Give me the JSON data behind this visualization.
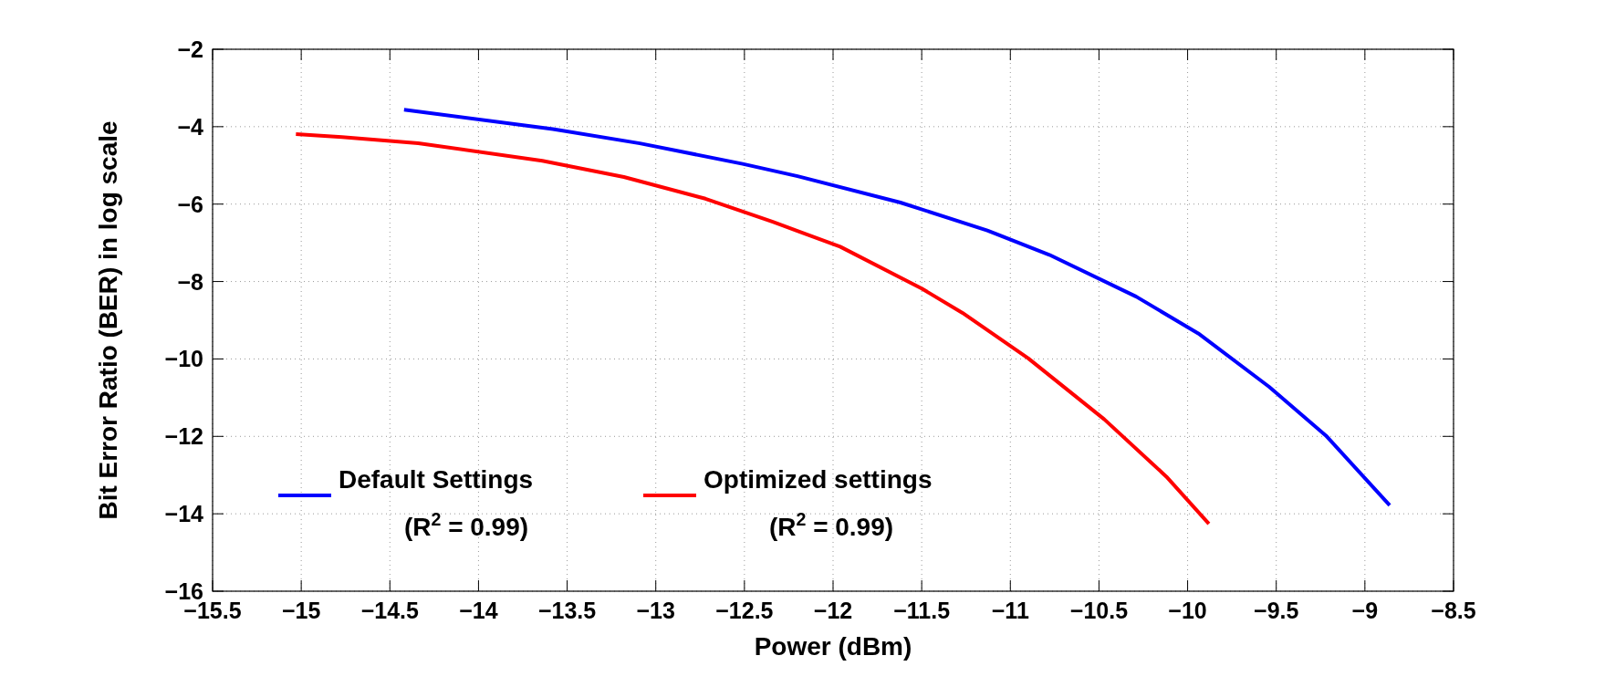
{
  "chart_data": {
    "type": "line",
    "xlabel": "Power (dBm)",
    "ylabel": "Bit Error Ratio (BER) in log scale",
    "xlim": [
      -15.5,
      -8.5
    ],
    "xticks": [
      -15.5,
      -15,
      -14.5,
      -14,
      -13.5,
      -13,
      -12.5,
      -12,
      -11.5,
      -11,
      -10.5,
      -10,
      -9.5,
      -9,
      -8.5
    ],
    "ylim": [
      -16,
      -2
    ],
    "yticks": [
      -16,
      -14,
      -12,
      -10,
      -8,
      -6,
      -4,
      -2
    ],
    "grid": true,
    "legend": "bottom left",
    "series": [
      {
        "name": "Default Settings\n(R$^{2}$ = 0.99)",
        "color": "#0000ff",
        "x": [
          -14.42,
          -13.58,
          -13.09,
          -12.51,
          -12.2,
          -11.62,
          -11.13,
          -10.78,
          -10.29,
          -9.94,
          -9.54,
          -9.22,
          -8.86
        ],
        "values": [
          -3.56,
          -4.06,
          -4.43,
          -4.96,
          -5.28,
          -5.96,
          -6.68,
          -7.31,
          -8.39,
          -9.34,
          -10.72,
          -11.98,
          -13.78
        ]
      },
      {
        "name": "Optimized settings\n(R$^{2}$ = 0.99)",
        "color": "#ff0000",
        "x": [
          -15.03,
          -14.77,
          -14.34,
          -13.64,
          -13.18,
          -12.72,
          -12.34,
          -11.96,
          -11.5,
          -11.27,
          -10.9,
          -10.47,
          -10.12,
          -9.88
        ],
        "values": [
          -4.19,
          -4.27,
          -4.43,
          -4.88,
          -5.3,
          -5.86,
          -6.46,
          -7.1,
          -8.18,
          -8.81,
          -9.98,
          -11.56,
          -13.04,
          -14.26
        ]
      }
    ]
  }
}
